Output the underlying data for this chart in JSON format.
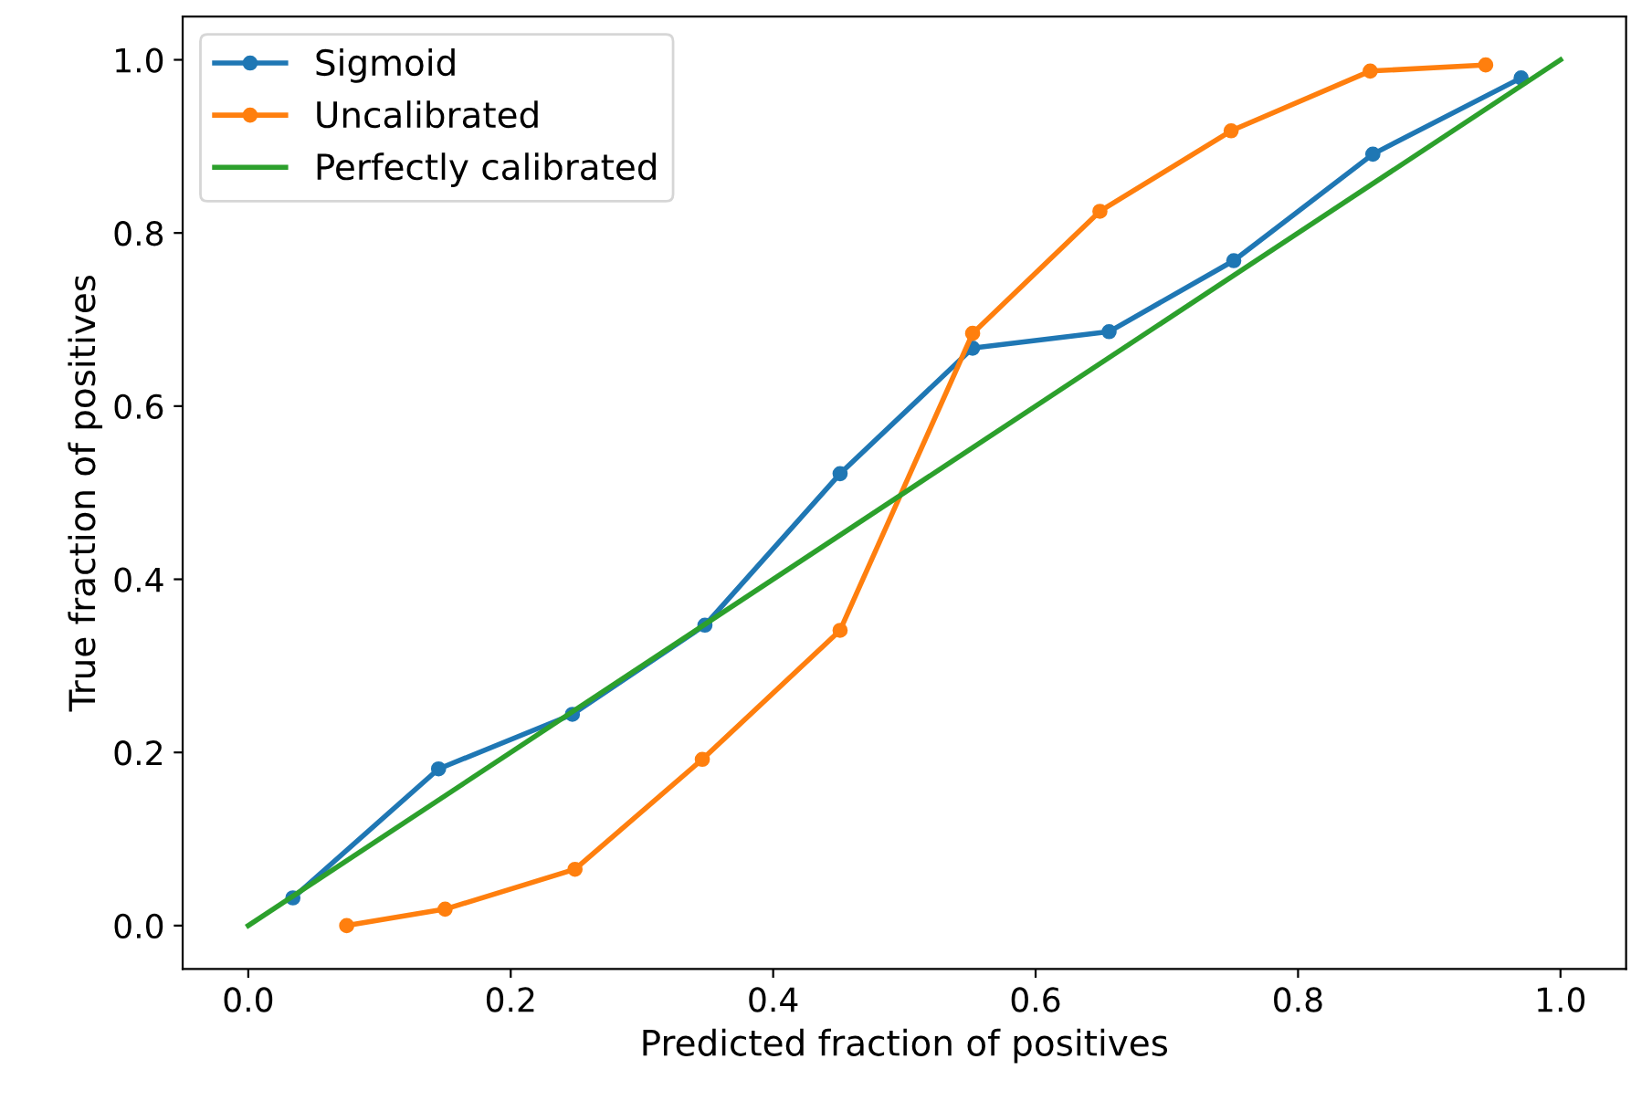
{
  "chart_data": {
    "type": "line",
    "xlabel": "Predicted fraction of positives",
    "ylabel": "True fraction of positives",
    "xlim": [
      -0.05,
      1.05
    ],
    "ylim": [
      -0.05,
      1.05
    ],
    "xticks": [
      {
        "value": 0.0,
        "label": "0.0"
      },
      {
        "value": 0.2,
        "label": "0.2"
      },
      {
        "value": 0.4,
        "label": "0.4"
      },
      {
        "value": 0.6,
        "label": "0.6"
      },
      {
        "value": 0.8,
        "label": "0.8"
      },
      {
        "value": 1.0,
        "label": "1.0"
      }
    ],
    "yticks": [
      {
        "value": 0.0,
        "label": "0.0"
      },
      {
        "value": 0.2,
        "label": "0.2"
      },
      {
        "value": 0.4,
        "label": "0.4"
      },
      {
        "value": 0.6,
        "label": "0.6"
      },
      {
        "value": 0.8,
        "label": "0.8"
      },
      {
        "value": 1.0,
        "label": "1.0"
      }
    ],
    "grid": false,
    "legend": "top left",
    "line_style": "solid",
    "series": [
      {
        "name": "Sigmoid",
        "color": "#1f77b4",
        "marker": "circle",
        "x": [
          0.034,
          0.145,
          0.247,
          0.348,
          0.451,
          0.552,
          0.656,
          0.751,
          0.857,
          0.97
        ],
        "values": [
          0.032,
          0.181,
          0.244,
          0.347,
          0.522,
          0.667,
          0.686,
          0.768,
          0.891,
          0.979
        ]
      },
      {
        "name": "Uncalibrated",
        "color": "#ff7f0e",
        "marker": "circle",
        "x": [
          0.075,
          0.15,
          0.249,
          0.346,
          0.451,
          0.552,
          0.649,
          0.749,
          0.855,
          0.943
        ],
        "values": [
          0.0,
          0.019,
          0.065,
          0.192,
          0.341,
          0.684,
          0.825,
          0.918,
          0.987,
          0.994
        ]
      },
      {
        "name": "Perfectly calibrated",
        "color": "#2ca02c",
        "marker": "none",
        "x": [
          0,
          1
        ],
        "values": [
          0,
          1
        ]
      }
    ]
  }
}
